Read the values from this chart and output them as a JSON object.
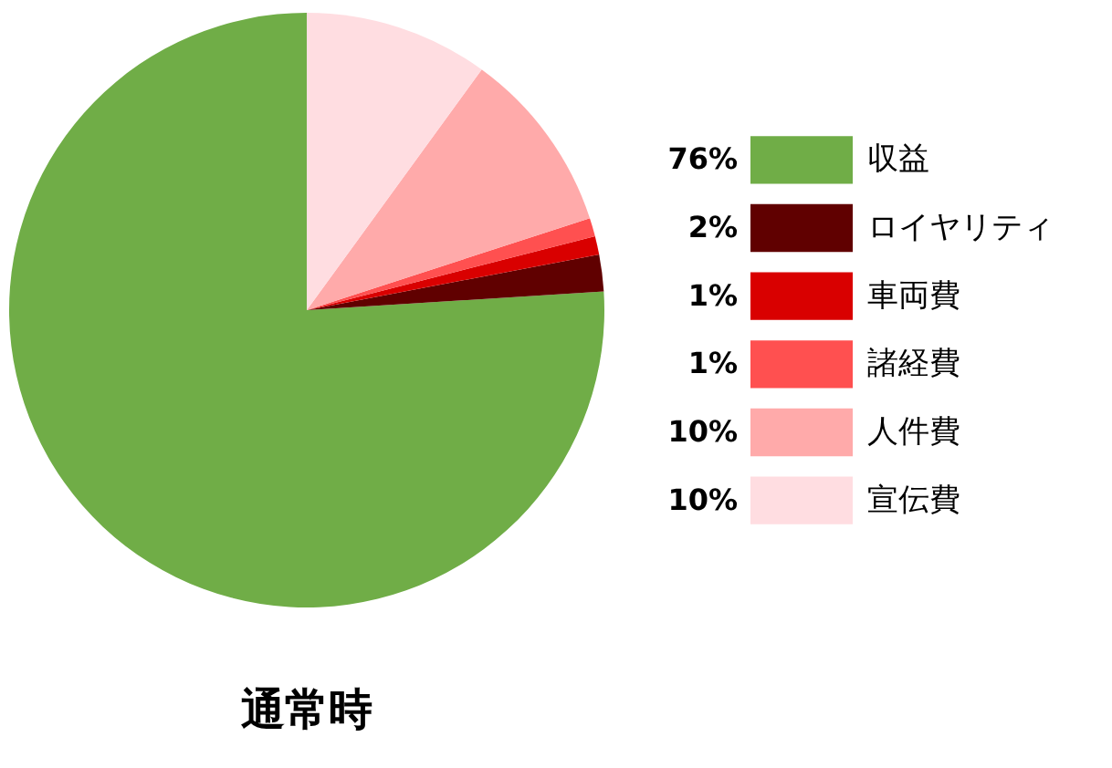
{
  "chart_data": {
    "type": "pie",
    "title": "通常時",
    "categories": [
      "収益",
      "ロイヤリティ",
      "車両費",
      "諸経費",
      "人件費",
      "宣伝費"
    ],
    "values": [
      76,
      2,
      1,
      1,
      10,
      10
    ],
    "colors": [
      "#70ad47",
      "#600000",
      "#d90000",
      "#ff5050",
      "#ffaaaa",
      "#ffdde1"
    ],
    "value_labels": [
      "76%",
      "2%",
      "1%",
      "1%",
      "10%",
      "10%"
    ],
    "legend": "right"
  }
}
